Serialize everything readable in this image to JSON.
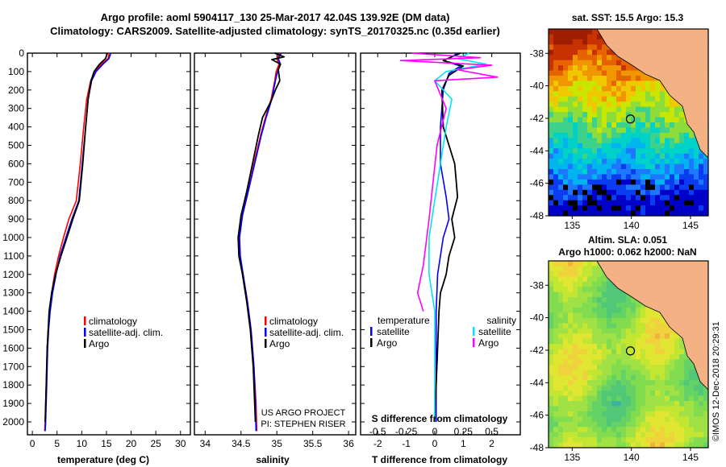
{
  "header": {
    "title1": "Argo profile: aoml 5904117_130 25-Mar-2017 42.04S 139.92E (DM data)",
    "title2": "Climatology: CARS2009. Satellite-adjusted climatology: synTS_20170325.nc (0.35d earlier)"
  },
  "depth_axis": {
    "ticks": [
      0,
      100,
      200,
      300,
      400,
      500,
      600,
      700,
      800,
      900,
      1000,
      1100,
      1200,
      1300,
      1400,
      1500,
      1600,
      1700,
      1800,
      1900,
      2000
    ],
    "ylim": [
      0,
      2070
    ]
  },
  "colors": {
    "climatology": "#ff0000",
    "satellite": "#0000ff",
    "argo": "#000000",
    "sat_sal": "#00e5ee",
    "argo_sal": "#ff00ff",
    "land": "#f4b183"
  },
  "chart_data": [
    {
      "type": "line",
      "id": "temperature",
      "xlabel": "temperature (deg C)",
      "ylabel": "depth",
      "xlim": [
        -1,
        32
      ],
      "ylim": [
        0,
        2070
      ],
      "xticks": [
        0,
        5,
        10,
        15,
        20,
        25,
        30
      ],
      "legend": [
        "climatology",
        "satellite-adj. clim.",
        "Argo"
      ],
      "series": [
        {
          "name": "climatology",
          "color": "#ff0000",
          "points": [
            [
              15.6,
              0
            ],
            [
              15.3,
              30
            ],
            [
              14.0,
              60
            ],
            [
              12.6,
              100
            ],
            [
              11.8,
              150
            ],
            [
              11.0,
              250
            ],
            [
              10.4,
              400
            ],
            [
              9.7,
              600
            ],
            [
              8.9,
              800
            ],
            [
              7.4,
              900
            ],
            [
              6.3,
              1000
            ],
            [
              5.3,
              1100
            ],
            [
              4.5,
              1200
            ],
            [
              3.9,
              1300
            ],
            [
              3.5,
              1400
            ],
            [
              3.2,
              1500
            ],
            [
              3.0,
              1600
            ],
            [
              2.8,
              1800
            ],
            [
              2.6,
              2000
            ],
            [
              2.5,
              2050
            ]
          ]
        },
        {
          "name": "satellite-adj. clim.",
          "color": "#0000ff",
          "points": [
            [
              15.9,
              0
            ],
            [
              15.5,
              30
            ],
            [
              14.3,
              60
            ],
            [
              12.9,
              100
            ],
            [
              12.0,
              150
            ],
            [
              11.3,
              250
            ],
            [
              10.8,
              400
            ],
            [
              10.1,
              600
            ],
            [
              9.4,
              800
            ],
            [
              8.0,
              900
            ],
            [
              6.8,
              1000
            ],
            [
              5.6,
              1100
            ],
            [
              4.8,
              1200
            ],
            [
              4.1,
              1300
            ],
            [
              3.6,
              1400
            ],
            [
              3.3,
              1500
            ],
            [
              3.1,
              1600
            ],
            [
              2.9,
              1800
            ],
            [
              2.7,
              2000
            ],
            [
              2.6,
              2050
            ]
          ]
        },
        {
          "name": "Argo",
          "color": "#000000",
          "points": [
            [
              15.2,
              0
            ],
            [
              14.8,
              30
            ],
            [
              13.6,
              60
            ],
            [
              12.5,
              100
            ],
            [
              11.9,
              150
            ],
            [
              11.3,
              250
            ],
            [
              10.8,
              400
            ],
            [
              10.2,
              600
            ],
            [
              9.5,
              800
            ],
            [
              8.2,
              900
            ],
            [
              7.0,
              1000
            ],
            [
              5.8,
              1100
            ],
            [
              4.7,
              1200
            ],
            [
              3.9,
              1300
            ],
            [
              3.4,
              1400
            ],
            [
              3.2,
              1500
            ],
            [
              3.0,
              1600
            ],
            [
              2.8,
              1800
            ],
            [
              2.6,
              2000
            ]
          ]
        }
      ]
    },
    {
      "type": "line",
      "id": "salinity",
      "xlabel": "salinity",
      "ylabel": "depth",
      "xlim": [
        33.85,
        36.1
      ],
      "ylim": [
        0,
        2070
      ],
      "xticks": [
        34,
        34.5,
        35,
        35.5,
        36
      ],
      "legend": [
        "climatology",
        "satellite-adj. clim.",
        "Argo"
      ],
      "annotation": [
        "US ARGO PROJECT",
        "PI: STEPHEN RISER"
      ],
      "series": [
        {
          "name": "climatology",
          "color": "#ff0000",
          "points": [
            [
              35.04,
              0
            ],
            [
              35.0,
              30
            ],
            [
              35.03,
              60
            ],
            [
              34.99,
              100
            ],
            [
              34.97,
              150
            ],
            [
              34.92,
              250
            ],
            [
              34.84,
              350
            ],
            [
              34.77,
              450
            ],
            [
              34.68,
              600
            ],
            [
              34.6,
              750
            ],
            [
              34.52,
              880
            ],
            [
              34.47,
              1000
            ],
            [
              34.48,
              1100
            ],
            [
              34.53,
              1200
            ],
            [
              34.59,
              1350
            ],
            [
              34.64,
              1500
            ],
            [
              34.68,
              1700
            ],
            [
              34.71,
              1900
            ],
            [
              34.72,
              2050
            ]
          ]
        },
        {
          "name": "satellite-adj. clim.",
          "color": "#0000ff",
          "points": [
            [
              35.06,
              0
            ],
            [
              35.02,
              30
            ],
            [
              35.05,
              60
            ],
            [
              35.01,
              100
            ],
            [
              34.98,
              150
            ],
            [
              34.93,
              250
            ],
            [
              34.85,
              350
            ],
            [
              34.78,
              450
            ],
            [
              34.69,
              600
            ],
            [
              34.6,
              750
            ],
            [
              34.52,
              880
            ],
            [
              34.48,
              1000
            ],
            [
              34.49,
              1100
            ],
            [
              34.53,
              1200
            ],
            [
              34.59,
              1350
            ],
            [
              34.64,
              1500
            ],
            [
              34.68,
              1700
            ],
            [
              34.7,
              1900
            ],
            [
              34.71,
              2050
            ]
          ]
        },
        {
          "name": "Argo",
          "color": "#000000",
          "points": [
            [
              34.97,
              0
            ],
            [
              35.1,
              20
            ],
            [
              34.93,
              35
            ],
            [
              35.05,
              60
            ],
            [
              35.02,
              90
            ],
            [
              35.04,
              150
            ],
            [
              34.98,
              200
            ],
            [
              34.92,
              260
            ],
            [
              34.8,
              350
            ],
            [
              34.74,
              450
            ],
            [
              34.66,
              600
            ],
            [
              34.58,
              750
            ],
            [
              34.5,
              880
            ],
            [
              34.46,
              1000
            ],
            [
              34.47,
              1100
            ],
            [
              34.52,
              1200
            ],
            [
              34.58,
              1350
            ],
            [
              34.63,
              1500
            ],
            [
              34.67,
              1700
            ],
            [
              34.69,
              1900
            ],
            [
              34.7,
              2000
            ]
          ]
        }
      ]
    },
    {
      "type": "line",
      "id": "differences",
      "xlabel": "T difference from climatology",
      "xlabel2": "S difference from climatology",
      "xlim": [
        -2.6,
        3.0
      ],
      "ylim": [
        0,
        2070
      ],
      "xticks": [
        -2,
        -1,
        0,
        1,
        2
      ],
      "xticks2": [
        -0.5,
        -0.25,
        0,
        0.25,
        0.5
      ],
      "xticks2_labels": [
        "-0.5",
        "-0.25",
        "0",
        "0.25",
        "0.5"
      ],
      "legend_left_title": "temperature",
      "legend_right_title": "salinity",
      "legend_left": [
        "satellite",
        "Argo"
      ],
      "legend_right": [
        "satellite",
        "Argo"
      ],
      "series": [
        {
          "name": "T satellite",
          "color": "#0000ff",
          "points": [
            [
              0.8,
              0
            ],
            [
              0.6,
              20
            ],
            [
              0.3,
              40
            ],
            [
              0.9,
              70
            ],
            [
              0.5,
              110
            ],
            [
              0.3,
              200
            ],
            [
              0.2,
              400
            ],
            [
              0.2,
              600
            ],
            [
              0.4,
              780
            ],
            [
              0.5,
              900
            ],
            [
              0.3,
              1000
            ],
            [
              0.2,
              1100
            ],
            [
              0.1,
              1200
            ],
            [
              0.05,
              1400
            ],
            [
              0.05,
              1600
            ],
            [
              0.05,
              1800
            ],
            [
              0.05,
              2000
            ]
          ]
        },
        {
          "name": "T Argo",
          "color": "#000000",
          "points": [
            [
              0.9,
              0
            ],
            [
              0.6,
              20
            ],
            [
              0.3,
              40
            ],
            [
              1.0,
              70
            ],
            [
              0.5,
              120
            ],
            [
              0.25,
              200
            ],
            [
              0.3,
              400
            ],
            [
              0.5,
              500
            ],
            [
              0.7,
              600
            ],
            [
              0.8,
              780
            ],
            [
              0.6,
              900
            ],
            [
              0.7,
              1000
            ],
            [
              0.5,
              1100
            ],
            [
              0.4,
              1200
            ],
            [
              0.2,
              1300
            ],
            [
              0.15,
              1400
            ],
            [
              0.1,
              1600
            ],
            [
              0.05,
              1800
            ],
            [
              0.0,
              2000
            ]
          ]
        },
        {
          "name": "S satellite",
          "color": "#00e5ee",
          "points": [
            [
              0.3,
              0
            ],
            [
              0.2,
              30
            ],
            [
              0.45,
              60
            ],
            [
              0.1,
              100
            ],
            [
              0.0,
              150
            ],
            [
              0.15,
              250
            ],
            [
              0.1,
              400
            ],
            [
              0.05,
              600
            ],
            [
              0.0,
              800
            ],
            [
              -0.05,
              1000
            ],
            [
              -0.05,
              1200
            ],
            [
              0.0,
              1400
            ],
            [
              0.0,
              1600
            ],
            [
              0.0,
              1800
            ],
            [
              0.0,
              2000
            ]
          ]
        },
        {
          "name": "S Argo",
          "color": "#ff00ff",
          "points": [
            [
              -0.2,
              0
            ],
            [
              0.4,
              25
            ],
            [
              -0.3,
              40
            ],
            [
              0.5,
              65
            ],
            [
              0.2,
              90
            ],
            [
              0.55,
              130
            ],
            [
              0.0,
              150
            ],
            [
              0.1,
              300
            ],
            [
              0.02,
              500
            ],
            [
              -0.05,
              900
            ],
            [
              -0.1,
              1150
            ],
            [
              -0.15,
              1300
            ],
            [
              -0.1,
              1400
            ]
          ]
        }
      ]
    }
  ],
  "maps": {
    "sst": {
      "title": "sat. SST: 15.5 Argo: 15.3",
      "yticks": [
        "-38",
        "-40",
        "-42",
        "-44",
        "-46",
        "-48"
      ],
      "xticks": [
        "135",
        "140",
        "145"
      ]
    },
    "sla": {
      "title1": "Altim. SLA: 0.051",
      "title2": "Argo h1000: 0.062 h2000: NaN",
      "yticks": [
        "-38",
        "-40",
        "-42",
        "-44",
        "-46",
        "-48"
      ],
      "xticks": [
        "135",
        "140",
        "145"
      ]
    }
  },
  "footer": {
    "stamp": "©IMOS 12-Dec-2018 20:29:31"
  }
}
